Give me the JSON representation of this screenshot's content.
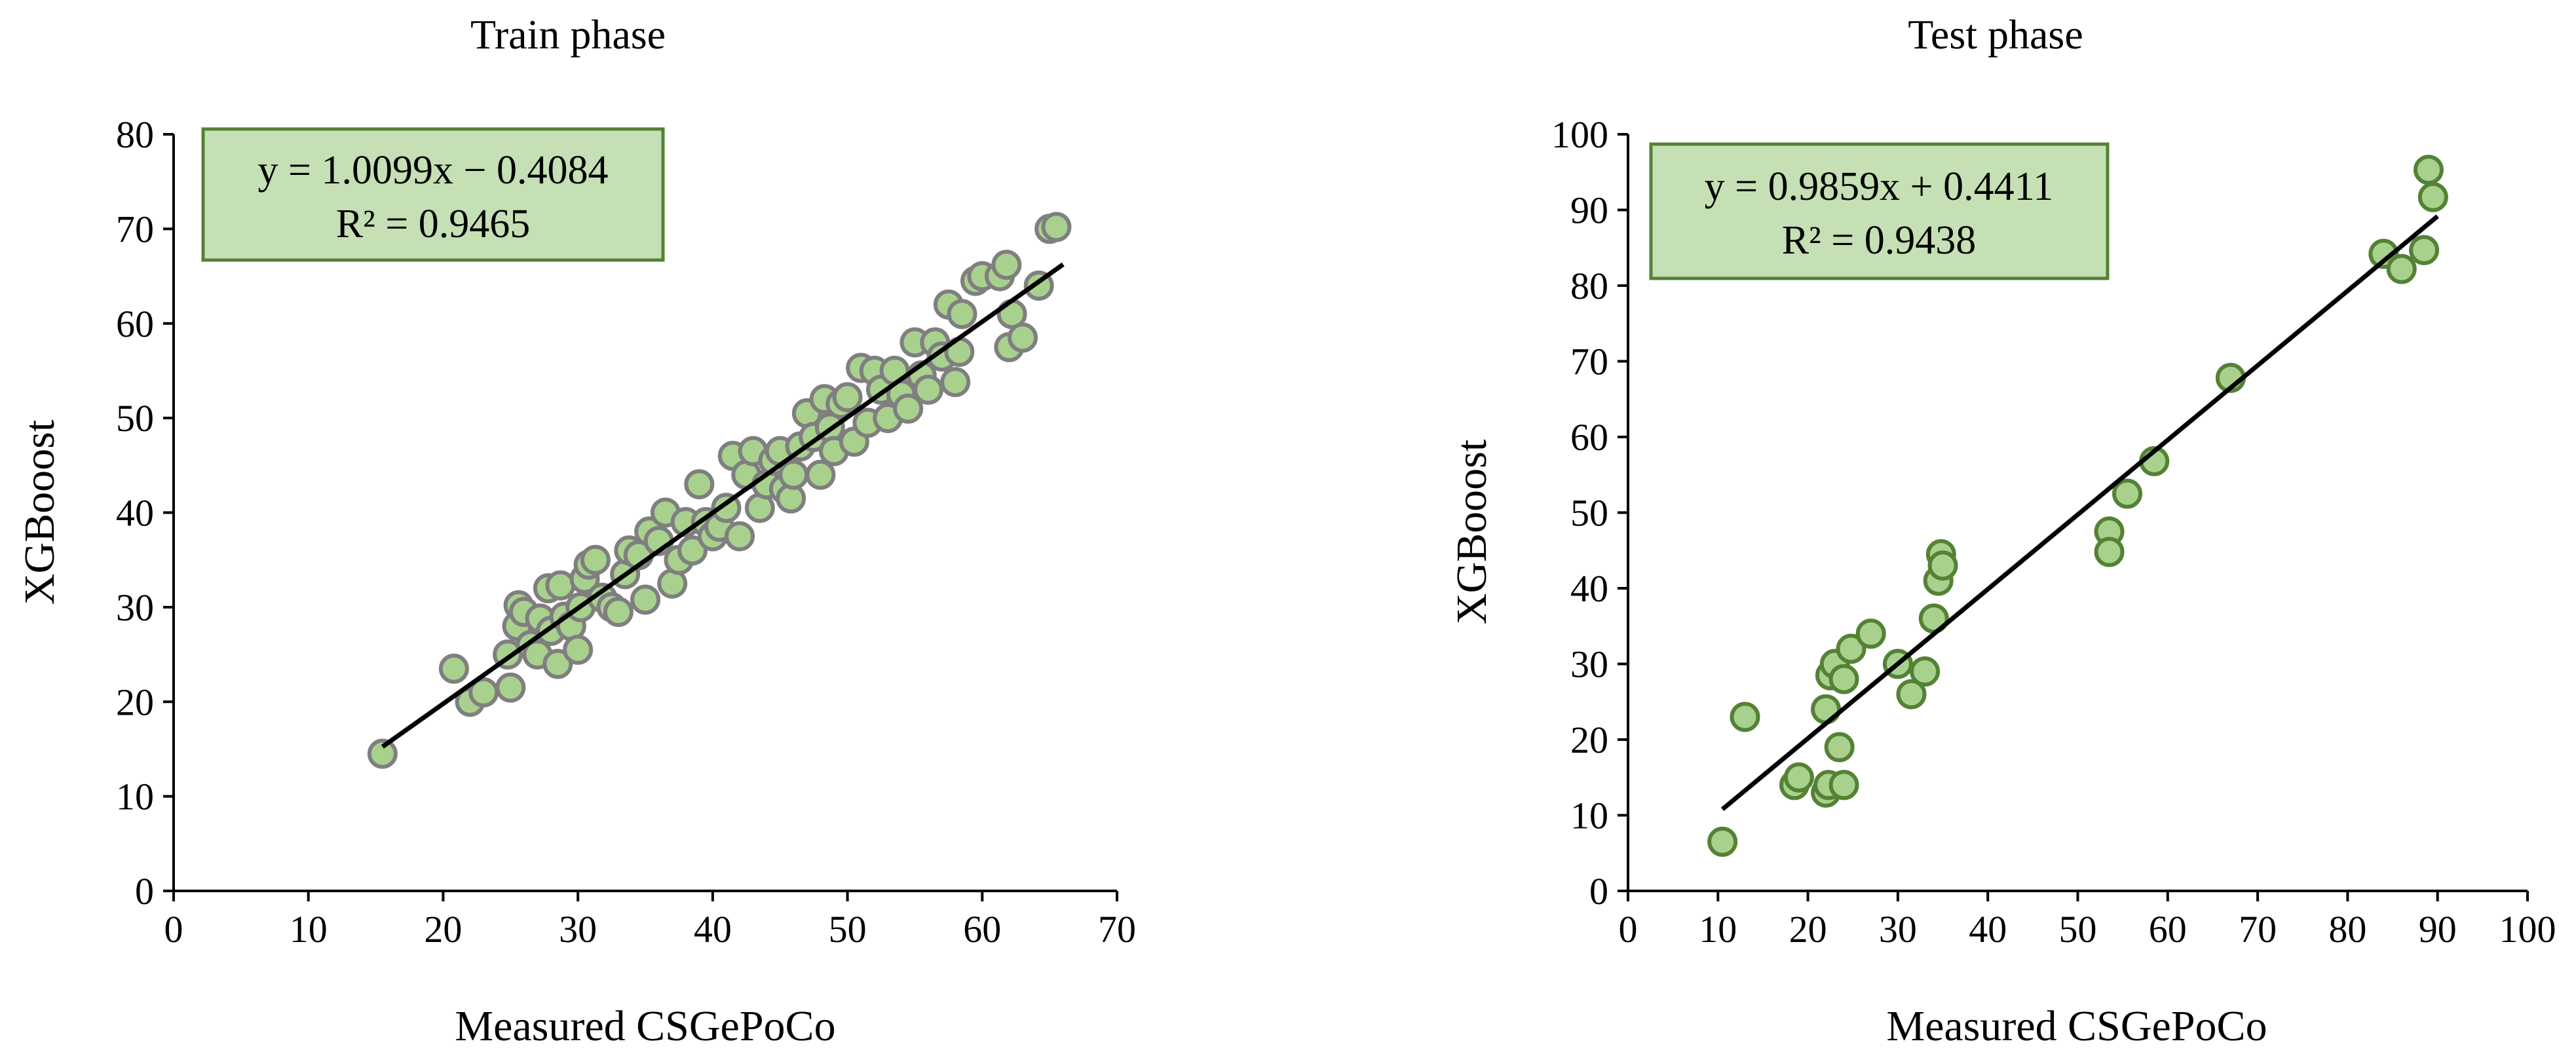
{
  "colors": {
    "marker_fill": "#a9d18e",
    "train_marker_edge": "#7f7f7f",
    "test_marker_edge": "#548235",
    "trendline": "#000000",
    "axis": "#000000",
    "eq_box_fill": "#c5e0b4",
    "eq_box_edge": "#548235"
  },
  "chart_data": [
    {
      "type": "scatter",
      "title": "Train phase",
      "xlabel": "Measured CSGePoCo",
      "ylabel": "XGBooost",
      "xlim": [
        0,
        70
      ],
      "ylim": [
        0,
        80
      ],
      "xticks": [
        0,
        10,
        20,
        30,
        40,
        50,
        60,
        70
      ],
      "yticks": [
        0,
        10,
        20,
        30,
        40,
        50,
        60,
        70,
        80
      ],
      "grid": false,
      "equation": "y = 1.0099x − 0.4084",
      "r2": "R² = 0.9465",
      "trendline": {
        "slope": 1.0099,
        "intercept": -0.4084,
        "x_range": [
          15.5,
          66
        ]
      },
      "points": [
        [
          15.5,
          14.5
        ],
        [
          20.8,
          23.5
        ],
        [
          22,
          20
        ],
        [
          23,
          21
        ],
        [
          24.8,
          25
        ],
        [
          25,
          21.5
        ],
        [
          25.5,
          28
        ],
        [
          25.6,
          30.2
        ],
        [
          26,
          29.5
        ],
        [
          26.5,
          26
        ],
        [
          27,
          25
        ],
        [
          27.2,
          28.8
        ],
        [
          27.8,
          32
        ],
        [
          28,
          27.5
        ],
        [
          28.5,
          24
        ],
        [
          28.7,
          32.3
        ],
        [
          29,
          29
        ],
        [
          29.5,
          28
        ],
        [
          30,
          25.5
        ],
        [
          30.2,
          30
        ],
        [
          30.5,
          33
        ],
        [
          30.8,
          34.5
        ],
        [
          31.3,
          35
        ],
        [
          31.8,
          31
        ],
        [
          32.5,
          30
        ],
        [
          33,
          29.5
        ],
        [
          33.5,
          33.5
        ],
        [
          33.8,
          36
        ],
        [
          34.5,
          35.5
        ],
        [
          35,
          30.8
        ],
        [
          35.3,
          38
        ],
        [
          36,
          37
        ],
        [
          36.5,
          40
        ],
        [
          37,
          32.5
        ],
        [
          37.5,
          35
        ],
        [
          38,
          39
        ],
        [
          38.5,
          36
        ],
        [
          39,
          43
        ],
        [
          39.5,
          39
        ],
        [
          40,
          37.5
        ],
        [
          40.5,
          38.5
        ],
        [
          41,
          40.5
        ],
        [
          41.5,
          46
        ],
        [
          42,
          37.5
        ],
        [
          42.5,
          44
        ],
        [
          43,
          46.5
        ],
        [
          43.5,
          40.5
        ],
        [
          44,
          43
        ],
        [
          44.5,
          45.5
        ],
        [
          45,
          46.5
        ],
        [
          45.3,
          42.5
        ],
        [
          45.8,
          41.5
        ],
        [
          46,
          44
        ],
        [
          46.5,
          47
        ],
        [
          47,
          50.5
        ],
        [
          47.5,
          48
        ],
        [
          48,
          44
        ],
        [
          48.3,
          52
        ],
        [
          48.7,
          49
        ],
        [
          49,
          46.5
        ],
        [
          49.5,
          51.5
        ],
        [
          50,
          52.2
        ],
        [
          50.5,
          47.5
        ],
        [
          51,
          55.3
        ],
        [
          51.5,
          49.5
        ],
        [
          52,
          55
        ],
        [
          52.5,
          53
        ],
        [
          53,
          50
        ],
        [
          53.5,
          55
        ],
        [
          54,
          52.5
        ],
        [
          54.5,
          51
        ],
        [
          55,
          58
        ],
        [
          55.5,
          54.5
        ],
        [
          56,
          53
        ],
        [
          56.5,
          58
        ],
        [
          57,
          56.5
        ],
        [
          57.5,
          62
        ],
        [
          58,
          53.8
        ],
        [
          58.3,
          57
        ],
        [
          58.5,
          61
        ],
        [
          59.5,
          64.5
        ],
        [
          60,
          65
        ],
        [
          61.3,
          65
        ],
        [
          61.8,
          66.2
        ],
        [
          62,
          57.5
        ],
        [
          62.2,
          61
        ],
        [
          63,
          58.5
        ],
        [
          64.2,
          64
        ],
        [
          65,
          70
        ],
        [
          65.5,
          70.2
        ]
      ]
    },
    {
      "type": "scatter",
      "title": "Test phase",
      "xlabel": "Measured CSGePoCo",
      "ylabel": "XGBooost",
      "xlim": [
        0,
        100
      ],
      "ylim": [
        0,
        100
      ],
      "xticks": [
        0,
        10,
        20,
        30,
        40,
        50,
        60,
        70,
        80,
        90,
        100
      ],
      "yticks": [
        0,
        10,
        20,
        30,
        40,
        50,
        60,
        70,
        80,
        90,
        100
      ],
      "grid": false,
      "equation": "y = 0.9859x + 0.4411",
      "r2": "R² = 0.9438",
      "trendline": {
        "slope": 0.9859,
        "intercept": 0.4411,
        "x_range": [
          10.5,
          90
        ]
      },
      "points": [
        [
          10.5,
          6.5
        ],
        [
          13,
          23
        ],
        [
          18.5,
          14
        ],
        [
          19,
          15
        ],
        [
          22,
          24
        ],
        [
          22,
          13
        ],
        [
          22.3,
          14
        ],
        [
          22.5,
          28.5
        ],
        [
          23,
          30
        ],
        [
          23.5,
          19
        ],
        [
          24,
          28
        ],
        [
          24,
          14
        ],
        [
          24.8,
          32
        ],
        [
          27,
          34
        ],
        [
          30,
          30
        ],
        [
          31.5,
          26
        ],
        [
          33,
          29
        ],
        [
          34,
          36
        ],
        [
          34.5,
          41
        ],
        [
          34.8,
          44.5
        ],
        [
          35,
          43
        ],
        [
          53.5,
          47.5
        ],
        [
          53.5,
          44.8
        ],
        [
          55.5,
          52.5
        ],
        [
          58.5,
          56.8
        ],
        [
          67,
          67.8
        ],
        [
          84,
          84.2
        ],
        [
          86,
          82.2
        ],
        [
          88.5,
          84.7
        ],
        [
          89,
          95.3
        ],
        [
          89.5,
          91.7
        ]
      ]
    }
  ]
}
